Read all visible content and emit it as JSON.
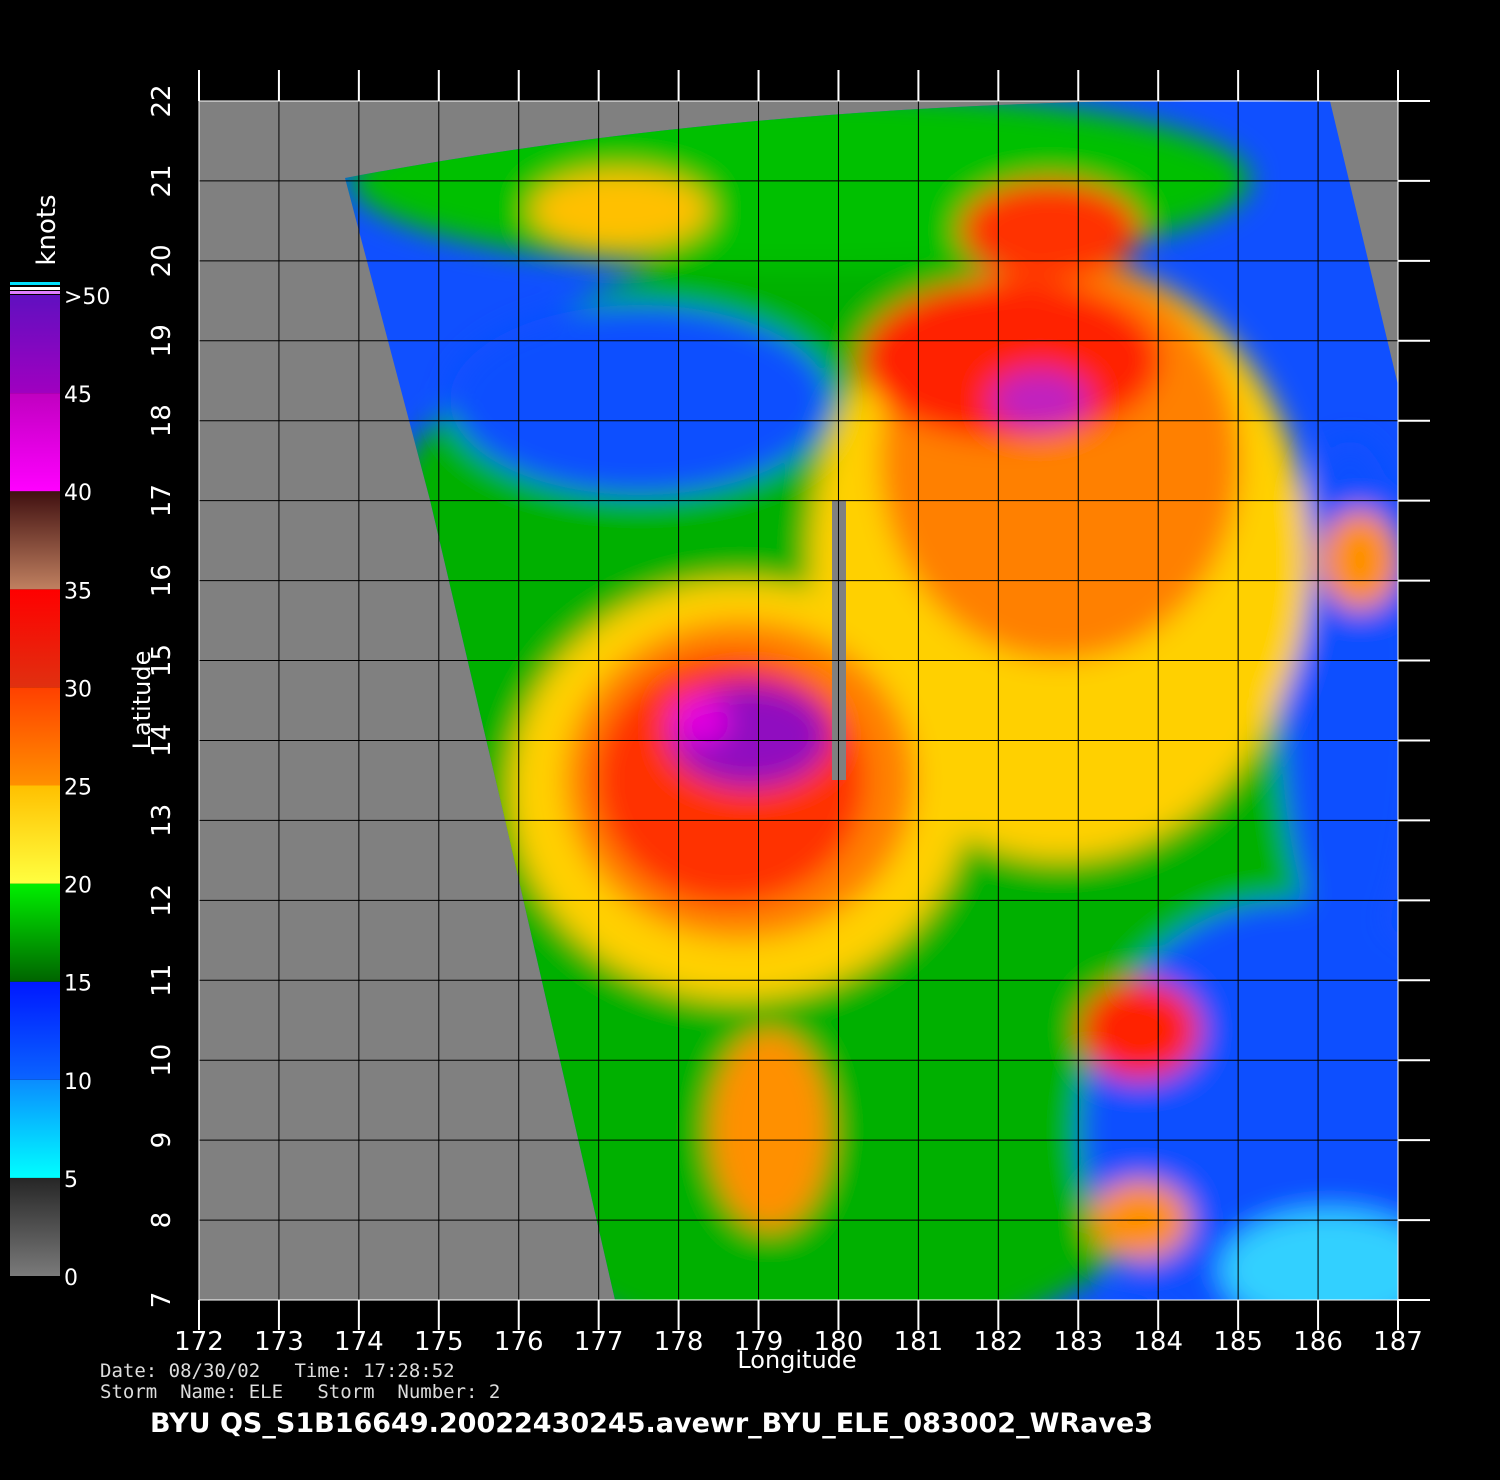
{
  "map": {
    "xlabel": "Longitude",
    "ylabel": "Latitude",
    "xlim": [
      172,
      187
    ],
    "ylim": [
      7,
      22
    ],
    "xticks": [
      172,
      173,
      174,
      175,
      176,
      177,
      178,
      179,
      180,
      181,
      182,
      183,
      184,
      185,
      186,
      187
    ],
    "yticks": [
      7,
      8,
      9,
      10,
      11,
      12,
      13,
      14,
      15,
      16,
      17,
      18,
      19,
      20,
      21,
      22
    ],
    "grid": true
  },
  "colorbar": {
    "label": "knots",
    "lim": [
      0,
      50
    ],
    "ticks": [
      0,
      5,
      10,
      15,
      20,
      25,
      30,
      35,
      40,
      45,
      {
        "value": 50,
        "label": ">50"
      }
    ],
    "colors": [
      [
        "#7a7a7a",
        "#262626"
      ],
      [
        "#00ffff",
        "#0a8cff"
      ],
      [
        "#0a64ff",
        "#0018ff"
      ],
      [
        "#006400",
        "#00f000"
      ],
      [
        "#ffff40",
        "#ffc000"
      ],
      [
        "#ff9000",
        "#ff4000"
      ],
      [
        "#e03010",
        "#ff0000"
      ],
      [
        "#c08060",
        "#401010"
      ],
      [
        "#ff00ff",
        "#c000c0"
      ],
      [
        "#a000c0",
        "#6010c0"
      ]
    ]
  },
  "footer": {
    "date_line": "Date: 08/30/02   Time: 17:28:52",
    "storm_line": "Storm  Name: ELE   Storm  Number: 2",
    "title": "BYU  QS_S1B16649.20022430245.avewr_BYU_ELE_083002_WRave3"
  }
}
